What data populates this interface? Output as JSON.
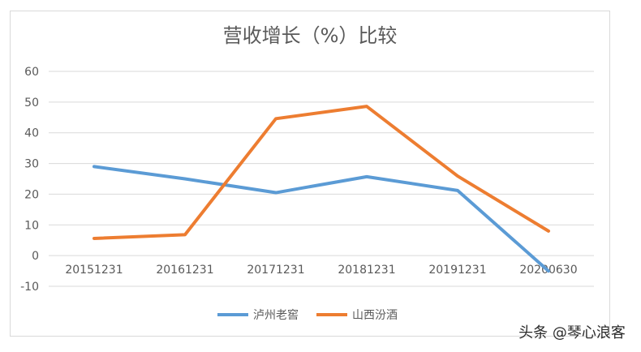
{
  "chart_data": {
    "type": "line",
    "title": "营收增长（%）比较",
    "categories": [
      "20151231",
      "20161231",
      "20171231",
      "20181231",
      "20191231",
      "20200630"
    ],
    "series": [
      {
        "name": "泸州老窖",
        "color": "#5b9bd5",
        "values": [
          29.0,
          25.0,
          20.5,
          25.7,
          21.2,
          -5.0
        ]
      },
      {
        "name": "山西汾酒",
        "color": "#ed7d31",
        "values": [
          5.6,
          6.8,
          44.6,
          48.6,
          25.9,
          8.0
        ]
      }
    ],
    "y_ticks": [
      "60",
      "50",
      "40",
      "30",
      "20",
      "10",
      "0",
      "-10"
    ],
    "ylim": [
      -10,
      60
    ],
    "grid": true,
    "legend_position": "bottom"
  },
  "watermark": "头条 @琴心浪客"
}
